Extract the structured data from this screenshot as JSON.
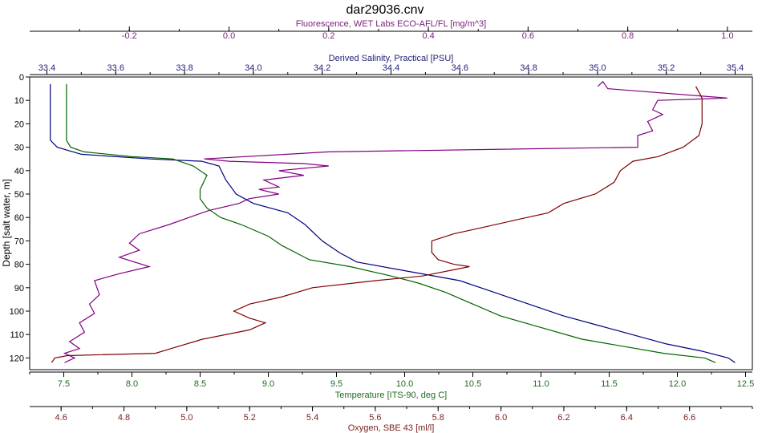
{
  "chart_data": {
    "type": "line",
    "title": "dar29036.cnv",
    "y_axis": {
      "label": "Depth [salt water, m]",
      "range": [
        0,
        125
      ],
      "ticks": [
        0,
        10,
        20,
        30,
        40,
        50,
        60,
        70,
        80,
        90,
        100,
        110,
        120
      ],
      "inverted": true
    },
    "x_axes": [
      {
        "id": "fluor",
        "label": "Fluorescence, WET Labs ECO-AFL/FL [mg/m^3]",
        "position": "top-1",
        "range": [
          -0.4,
          1.05
        ],
        "ticks": [
          -0.2,
          0.0,
          0.2,
          0.4,
          0.6,
          0.8,
          1.0
        ],
        "tick_labels": [
          "-0.2",
          "0.0",
          "0.2",
          "0.4",
          "0.6",
          "0.8",
          "1.0"
        ],
        "color": "#7a1f7a"
      },
      {
        "id": "sal",
        "label": "Derived Salinity, Practical [PSU]",
        "position": "top-2",
        "range": [
          33.35,
          35.45
        ],
        "ticks": [
          33.4,
          33.6,
          33.8,
          34.0,
          34.2,
          34.4,
          34.6,
          34.8,
          35.0,
          35.2,
          35.4
        ],
        "tick_labels": [
          "33.4",
          "33.6",
          "33.8",
          "34.0",
          "34.2",
          "34.4",
          "34.6",
          "34.8",
          "35.0",
          "35.2",
          "35.4"
        ],
        "color": "#1f1f7a"
      },
      {
        "id": "temp",
        "label": "Temperature [ITS-90, deg C]",
        "position": "bottom-1",
        "range": [
          7.25,
          12.55
        ],
        "ticks": [
          7.5,
          8.0,
          8.5,
          9.0,
          9.5,
          10.0,
          10.5,
          11.0,
          11.5,
          12.0,
          12.5
        ],
        "tick_labels": [
          "7.5",
          "8.0",
          "8.5",
          "9.0",
          "9.5",
          "10.0",
          "10.5",
          "11.0",
          "11.5",
          "12.0",
          "12.5"
        ],
        "color": "#1f6b1f"
      },
      {
        "id": "oxy",
        "label": "Oxygen, SBE 43 [ml/l]",
        "position": "bottom-2",
        "range": [
          4.5,
          6.8
        ],
        "ticks": [
          4.6,
          4.8,
          5.0,
          5.2,
          5.4,
          5.6,
          5.8,
          6.0,
          6.2,
          6.4,
          6.6
        ],
        "tick_labels": [
          "4.6",
          "4.8",
          "5.0",
          "5.2",
          "5.4",
          "5.6",
          "5.8",
          "6.0",
          "6.2",
          "6.4",
          "6.6"
        ],
        "color": "#7a1f1f"
      }
    ],
    "series": [
      {
        "name": "Fluorescence, WET Labs ECO-AFL/FL [mg/m^3]",
        "axis": "fluor",
        "color": "#800080",
        "points": [
          [
            0.74,
            4
          ],
          [
            0.75,
            2
          ],
          [
            0.76,
            5
          ],
          [
            1.0,
            9
          ],
          [
            0.86,
            10
          ],
          [
            0.85,
            14
          ],
          [
            0.87,
            16
          ],
          [
            0.84,
            19
          ],
          [
            0.85,
            23
          ],
          [
            0.82,
            25
          ],
          [
            0.82,
            30
          ],
          [
            0.2,
            32
          ],
          [
            -0.05,
            35
          ],
          [
            0.0,
            36
          ],
          [
            0.15,
            37
          ],
          [
            0.2,
            38
          ],
          [
            0.1,
            40
          ],
          [
            0.15,
            42
          ],
          [
            0.07,
            44
          ],
          [
            0.1,
            47
          ],
          [
            0.06,
            48
          ],
          [
            0.1,
            50
          ],
          [
            0.04,
            52
          ],
          [
            0.02,
            54
          ],
          [
            -0.04,
            57
          ],
          [
            -0.08,
            60
          ],
          [
            -0.12,
            63
          ],
          [
            -0.18,
            67
          ],
          [
            -0.2,
            71
          ],
          [
            -0.18,
            74
          ],
          [
            -0.22,
            77
          ],
          [
            -0.16,
            81
          ],
          [
            -0.22,
            84
          ],
          [
            -0.27,
            87
          ],
          [
            -0.26,
            93
          ],
          [
            -0.28,
            97
          ],
          [
            -0.27,
            101
          ],
          [
            -0.3,
            105
          ],
          [
            -0.29,
            109
          ],
          [
            -0.32,
            113
          ],
          [
            -0.3,
            116
          ],
          [
            -0.33,
            118
          ],
          [
            -0.31,
            120
          ],
          [
            -0.33,
            122
          ]
        ]
      },
      {
        "name": "Derived Salinity, Practical [PSU]",
        "axis": "sal",
        "color": "#000080",
        "points": [
          [
            33.41,
            3
          ],
          [
            33.41,
            20
          ],
          [
            33.41,
            27
          ],
          [
            33.43,
            30
          ],
          [
            33.5,
            33
          ],
          [
            33.7,
            35
          ],
          [
            33.85,
            36
          ],
          [
            33.9,
            38
          ],
          [
            33.92,
            44
          ],
          [
            33.95,
            50
          ],
          [
            34.0,
            54
          ],
          [
            34.1,
            58
          ],
          [
            34.15,
            63
          ],
          [
            34.2,
            70
          ],
          [
            34.25,
            75
          ],
          [
            34.3,
            79
          ],
          [
            34.45,
            83
          ],
          [
            34.6,
            87
          ],
          [
            34.7,
            92
          ],
          [
            34.8,
            97
          ],
          [
            34.9,
            102
          ],
          [
            35.0,
            106
          ],
          [
            35.1,
            110
          ],
          [
            35.2,
            114
          ],
          [
            35.3,
            117
          ],
          [
            35.38,
            120
          ],
          [
            35.4,
            122
          ]
        ]
      },
      {
        "name": "Temperature [ITS-90, deg C]",
        "axis": "temp",
        "color": "#006400",
        "points": [
          [
            7.52,
            3
          ],
          [
            7.52,
            20
          ],
          [
            7.52,
            27
          ],
          [
            7.55,
            30
          ],
          [
            7.65,
            32
          ],
          [
            8.0,
            34
          ],
          [
            8.3,
            35
          ],
          [
            8.45,
            38
          ],
          [
            8.55,
            42
          ],
          [
            8.5,
            48
          ],
          [
            8.5,
            52
          ],
          [
            8.55,
            56
          ],
          [
            8.65,
            60
          ],
          [
            8.8,
            63
          ],
          [
            9.0,
            68
          ],
          [
            9.1,
            72
          ],
          [
            9.3,
            78
          ],
          [
            9.6,
            81
          ],
          [
            9.9,
            85
          ],
          [
            10.1,
            88
          ],
          [
            10.3,
            92
          ],
          [
            10.5,
            97
          ],
          [
            10.7,
            102
          ],
          [
            11.0,
            107
          ],
          [
            11.3,
            112
          ],
          [
            11.6,
            115
          ],
          [
            11.9,
            118
          ],
          [
            12.2,
            120
          ],
          [
            12.28,
            122
          ]
        ]
      },
      {
        "name": "Oxygen, SBE 43 [ml/l]",
        "axis": "oxy",
        "color": "#800000",
        "points": [
          [
            6.62,
            4
          ],
          [
            6.64,
            9
          ],
          [
            6.64,
            20
          ],
          [
            6.63,
            25
          ],
          [
            6.58,
            30
          ],
          [
            6.5,
            34
          ],
          [
            6.42,
            36
          ],
          [
            6.38,
            40
          ],
          [
            6.36,
            45
          ],
          [
            6.3,
            50
          ],
          [
            6.2,
            54
          ],
          [
            6.15,
            58
          ],
          [
            6.05,
            61
          ],
          [
            5.95,
            64
          ],
          [
            5.85,
            67
          ],
          [
            5.78,
            70
          ],
          [
            5.78,
            75
          ],
          [
            5.8,
            78
          ],
          [
            5.85,
            80
          ],
          [
            5.9,
            81
          ],
          [
            5.75,
            85
          ],
          [
            5.6,
            87
          ],
          [
            5.4,
            90
          ],
          [
            5.3,
            94
          ],
          [
            5.2,
            97
          ],
          [
            5.15,
            100
          ],
          [
            5.2,
            103
          ],
          [
            5.25,
            105
          ],
          [
            5.2,
            108
          ],
          [
            5.05,
            112
          ],
          [
            4.95,
            116
          ],
          [
            4.9,
            118
          ],
          [
            4.62,
            119
          ],
          [
            4.58,
            120
          ],
          [
            4.57,
            122
          ]
        ]
      }
    ]
  }
}
